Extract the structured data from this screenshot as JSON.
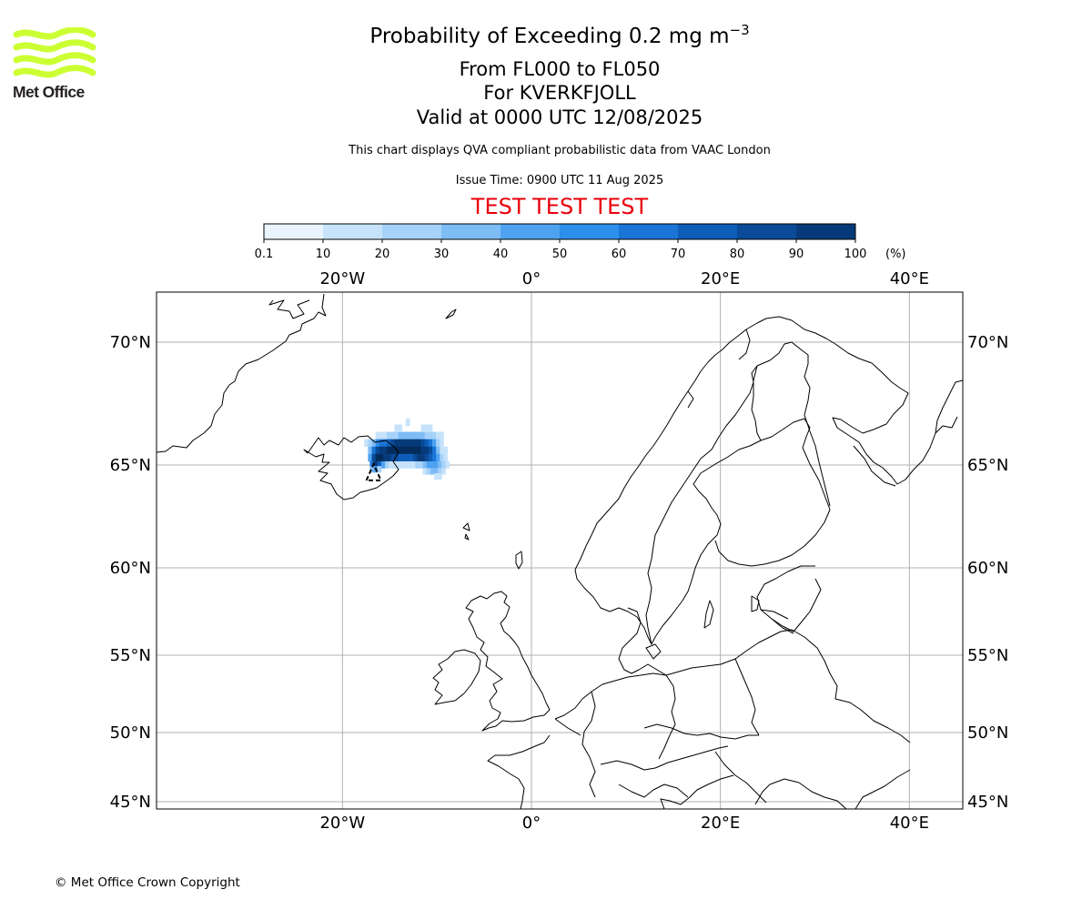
{
  "logo": {
    "text": "Met Office",
    "color": "#ccff33"
  },
  "title": {
    "main_prefix": "Probability of Exceeding 0.2 mg m",
    "main_exp": "−3",
    "levels": "From FL000 to FL050",
    "volcano": "For KVERKFJOLL",
    "valid": "Valid at 0000 UTC 12/08/2025"
  },
  "subtitle": "This chart displays QVA compliant probabilistic data from VAAC London",
  "issue_time": "Issue Time: 0900 UTC 11 Aug 2025",
  "test_banner": "TEST TEST TEST",
  "copyright": "© Met Office Crown Copyright",
  "colorbar": {
    "ticks": [
      "0.1",
      "10",
      "20",
      "30",
      "40",
      "50",
      "60",
      "70",
      "80",
      "90",
      "100"
    ],
    "unit": "(%)",
    "colors": [
      "#eaf4fe",
      "#c6e3fb",
      "#a6d2f9",
      "#7dbcf5",
      "#4ea2f0",
      "#2e8eeb",
      "#1a74d6",
      "#0e5db8",
      "#094b98",
      "#063a7a",
      "#032c5c"
    ]
  },
  "map": {
    "lon_labels": [
      "20°W",
      "0°",
      "20°E",
      "40°E"
    ],
    "lat_labels": [
      "70°N",
      "65°N",
      "60°N",
      "55°N",
      "50°N",
      "45°N"
    ],
    "lons": [
      -20,
      0,
      20,
      40
    ],
    "lats": [
      70,
      65,
      60,
      55,
      50,
      45
    ],
    "extent": {
      "lon_min": -39.5,
      "lon_max": 45.5,
      "lat_min": 44.7,
      "lat_max": 71.8
    },
    "volcano": {
      "name": "Kverkfjoll",
      "lon": -16.7,
      "lat": 64.65
    },
    "ash_cells": [
      [
        -16.3,
        66.2,
        1
      ],
      [
        -15.9,
        66.2,
        1
      ],
      [
        -15.5,
        66.2,
        1
      ],
      [
        -15.1,
        66.2,
        2
      ],
      [
        -14.7,
        66.2,
        2
      ],
      [
        -14.3,
        66.2,
        2
      ],
      [
        -13.9,
        66.2,
        3
      ],
      [
        -13.5,
        66.2,
        3
      ],
      [
        -13.1,
        66.2,
        3
      ],
      [
        -12.7,
        66.2,
        3
      ],
      [
        -12.3,
        66.2,
        3
      ],
      [
        -11.9,
        66.2,
        3
      ],
      [
        -11.5,
        66.2,
        3
      ],
      [
        -11.1,
        66.2,
        2
      ],
      [
        -10.7,
        66.2,
        2
      ],
      [
        -10.3,
        66.2,
        2
      ],
      [
        -9.9,
        66.2,
        1
      ],
      [
        -9.5,
        66.2,
        1
      ],
      [
        -17.5,
        65.9,
        1
      ],
      [
        -17.1,
        65.9,
        2
      ],
      [
        -16.7,
        65.9,
        3
      ],
      [
        -16.3,
        65.9,
        5
      ],
      [
        -15.9,
        65.9,
        6
      ],
      [
        -15.5,
        65.9,
        6
      ],
      [
        -15.1,
        65.9,
        7
      ],
      [
        -14.7,
        65.9,
        8
      ],
      [
        -14.3,
        65.9,
        9
      ],
      [
        -13.9,
        65.9,
        9
      ],
      [
        -13.5,
        65.9,
        9
      ],
      [
        -13.1,
        65.9,
        9
      ],
      [
        -12.7,
        65.9,
        9
      ],
      [
        -12.3,
        65.9,
        9
      ],
      [
        -11.9,
        65.9,
        9
      ],
      [
        -11.5,
        65.9,
        8
      ],
      [
        -11.1,
        65.9,
        7
      ],
      [
        -10.7,
        65.9,
        6
      ],
      [
        -10.3,
        65.9,
        4
      ],
      [
        -9.9,
        65.9,
        2
      ],
      [
        -9.5,
        65.9,
        1
      ],
      [
        -17.1,
        65.6,
        3
      ],
      [
        -16.7,
        65.6,
        6
      ],
      [
        -16.3,
        65.6,
        8
      ],
      [
        -15.9,
        65.6,
        9
      ],
      [
        -15.5,
        65.6,
        9
      ],
      [
        -15.1,
        65.6,
        10
      ],
      [
        -14.7,
        65.6,
        10
      ],
      [
        -14.3,
        65.6,
        10
      ],
      [
        -13.9,
        65.6,
        10
      ],
      [
        -13.5,
        65.6,
        10
      ],
      [
        -13.1,
        65.6,
        10
      ],
      [
        -12.7,
        65.6,
        10
      ],
      [
        -12.3,
        65.6,
        10
      ],
      [
        -11.9,
        65.6,
        10
      ],
      [
        -11.5,
        65.6,
        9
      ],
      [
        -11.1,
        65.6,
        9
      ],
      [
        -10.7,
        65.6,
        8
      ],
      [
        -10.3,
        65.6,
        6
      ],
      [
        -9.9,
        65.6,
        3
      ],
      [
        -9.5,
        65.6,
        1
      ],
      [
        -9.1,
        65.6,
        1
      ],
      [
        -17.1,
        65.3,
        4
      ],
      [
        -16.7,
        65.3,
        8
      ],
      [
        -16.3,
        65.3,
        10
      ],
      [
        -15.9,
        65.3,
        10
      ],
      [
        -15.5,
        65.3,
        9
      ],
      [
        -15.1,
        65.3,
        9
      ],
      [
        -14.7,
        65.3,
        8
      ],
      [
        -14.3,
        65.3,
        8
      ],
      [
        -13.9,
        65.3,
        7
      ],
      [
        -13.5,
        65.3,
        7
      ],
      [
        -13.1,
        65.3,
        7
      ],
      [
        -12.7,
        65.3,
        7
      ],
      [
        -12.3,
        65.3,
        8
      ],
      [
        -11.9,
        65.3,
        9
      ],
      [
        -11.5,
        65.3,
        9
      ],
      [
        -11.1,
        65.3,
        8
      ],
      [
        -10.7,
        65.3,
        7
      ],
      [
        -10.3,
        65.3,
        6
      ],
      [
        -9.9,
        65.3,
        4
      ],
      [
        -9.5,
        65.3,
        2
      ],
      [
        -9.1,
        65.3,
        1
      ],
      [
        -16.9,
        65.0,
        6
      ],
      [
        -16.5,
        65.0,
        9
      ],
      [
        -16.1,
        65.0,
        7
      ],
      [
        -15.7,
        65.0,
        4
      ],
      [
        -15.3,
        65.0,
        2
      ],
      [
        -14.9,
        65.0,
        1
      ],
      [
        -14.5,
        65.0,
        1
      ],
      [
        -14.1,
        65.0,
        1
      ],
      [
        -13.7,
        65.0,
        1
      ],
      [
        -13.3,
        65.0,
        1
      ],
      [
        -12.9,
        65.0,
        1
      ],
      [
        -12.5,
        65.0,
        1
      ],
      [
        -12.1,
        65.0,
        2
      ],
      [
        -11.7,
        65.0,
        2
      ],
      [
        -11.3,
        65.0,
        3
      ],
      [
        -10.9,
        65.0,
        4
      ],
      [
        -10.5,
        65.0,
        4
      ],
      [
        -10.1,
        65.0,
        4
      ],
      [
        -9.7,
        65.0,
        3
      ],
      [
        -9.3,
        65.0,
        2
      ],
      [
        -8.9,
        65.0,
        1
      ],
      [
        -16.9,
        64.8,
        3
      ],
      [
        -16.5,
        64.8,
        4
      ],
      [
        -16.1,
        64.8,
        2
      ],
      [
        -11.3,
        64.7,
        1
      ],
      [
        -10.9,
        64.7,
        2
      ],
      [
        -10.5,
        64.7,
        3
      ],
      [
        -10.1,
        64.7,
        3
      ],
      [
        -9.7,
        64.7,
        2
      ],
      [
        -9.3,
        64.7,
        1
      ],
      [
        -10.1,
        64.45,
        1
      ],
      [
        -9.7,
        64.45,
        1
      ],
      [
        -14.3,
        66.5,
        1
      ],
      [
        -13.9,
        66.5,
        1
      ],
      [
        -11.5,
        66.5,
        1
      ],
      [
        -11.1,
        66.5,
        1
      ],
      [
        -10.7,
        66.5,
        1
      ],
      [
        -13.1,
        66.75,
        1
      ]
    ],
    "coast_color": "#000000",
    "grid_color": "#b0b0b0"
  }
}
